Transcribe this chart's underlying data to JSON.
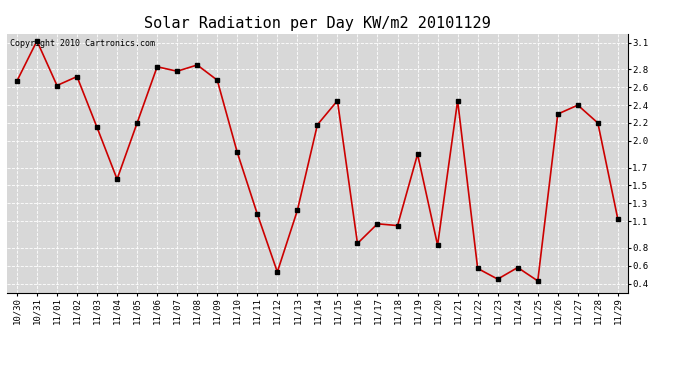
{
  "title": "Solar Radiation per Day KW/m2 20101129",
  "copyright_text": "Copyright 2010 Cartronics.com",
  "labels": [
    "10/30",
    "10/31",
    "11/01",
    "11/02",
    "11/03",
    "11/04",
    "11/05",
    "11/06",
    "11/07",
    "11/08",
    "11/09",
    "11/10",
    "11/11",
    "11/12",
    "11/13",
    "11/14",
    "11/15",
    "11/16",
    "11/17",
    "11/18",
    "11/19",
    "11/20",
    "11/21",
    "11/22",
    "11/23",
    "11/24",
    "11/25",
    "11/26",
    "11/27",
    "11/28",
    "11/29"
  ],
  "values": [
    2.67,
    3.12,
    2.62,
    2.72,
    2.15,
    1.57,
    2.2,
    2.83,
    2.78,
    2.85,
    2.68,
    1.87,
    1.18,
    0.53,
    1.22,
    2.18,
    2.45,
    0.85,
    1.07,
    1.05,
    1.85,
    0.83,
    2.45,
    0.57,
    0.45,
    0.58,
    0.43,
    2.3,
    2.4,
    2.2,
    1.12
  ],
  "ylim": [
    0.3,
    3.2
  ],
  "yticks": [
    0.4,
    0.6,
    0.8,
    1.1,
    1.3,
    1.5,
    1.7,
    2.0,
    2.2,
    2.4,
    2.6,
    2.8,
    3.1
  ],
  "line_color": "#cc0000",
  "marker_color": "#000000",
  "bg_color": "#ffffff",
  "plot_bg_color": "#d8d8d8",
  "grid_color": "#ffffff",
  "title_fontsize": 11,
  "tick_fontsize": 6.5,
  "copyright_fontsize": 6
}
